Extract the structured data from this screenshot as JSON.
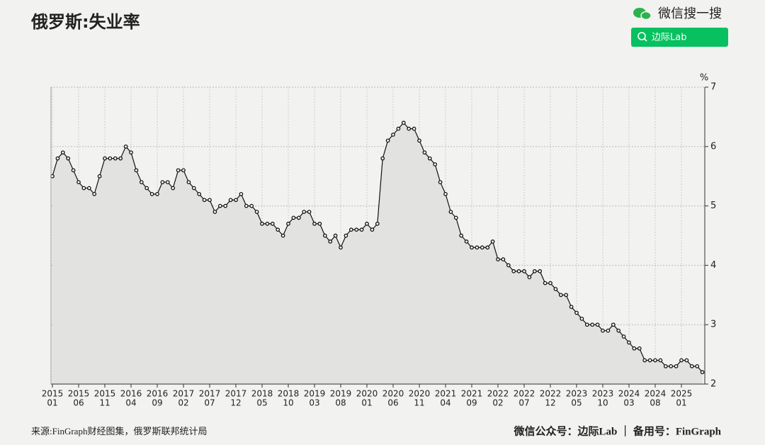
{
  "chart_data": {
    "type": "line",
    "title": "俄罗斯:失业率",
    "unit": "%",
    "search_label": "微信搜一搜",
    "search_button": "边际Lab",
    "source": "来源:FinGraph财经图集，俄罗斯联邦统计局",
    "footer_right": "微信公众号：边际Lab ｜ 备用号：FinGraph",
    "categories": [
      {
        "year": "2015",
        "month": "01"
      },
      null,
      null,
      null,
      null,
      {
        "year": "2015",
        "month": "06"
      },
      null,
      null,
      null,
      null,
      {
        "year": "2015",
        "month": "11"
      },
      null,
      null,
      null,
      null,
      {
        "year": "2016",
        "month": "04"
      },
      null,
      null,
      null,
      null,
      {
        "year": "2016",
        "month": "09"
      },
      null,
      null,
      null,
      null,
      {
        "year": "2017",
        "month": "02"
      },
      null,
      null,
      null,
      null,
      {
        "year": "2017",
        "month": "07"
      },
      null,
      null,
      null,
      null,
      {
        "year": "2017",
        "month": "12"
      },
      null,
      null,
      null,
      null,
      {
        "year": "2018",
        "month": "05"
      },
      null,
      null,
      null,
      null,
      {
        "year": "2018",
        "month": "10"
      },
      null,
      null,
      null,
      null,
      {
        "year": "2019",
        "month": "03"
      },
      null,
      null,
      null,
      null,
      {
        "year": "2019",
        "month": "08"
      },
      null,
      null,
      null,
      null,
      {
        "year": "2020",
        "month": "01"
      },
      null,
      null,
      null,
      null,
      {
        "year": "2020",
        "month": "06"
      },
      null,
      null,
      null,
      null,
      {
        "year": "2020",
        "month": "11"
      },
      null,
      null,
      null,
      null,
      {
        "year": "2021",
        "month": "04"
      },
      null,
      null,
      null,
      null,
      {
        "year": "2021",
        "month": "09"
      },
      null,
      null,
      null,
      null,
      {
        "year": "2022",
        "month": "02"
      },
      null,
      null,
      null,
      null,
      {
        "year": "2022",
        "month": "07"
      },
      null,
      null,
      null,
      null,
      {
        "year": "2022",
        "month": "12"
      },
      null,
      null,
      null,
      null,
      {
        "year": "2023",
        "month": "05"
      },
      null,
      null,
      null,
      null,
      {
        "year": "2023",
        "month": "10"
      },
      null,
      null,
      null,
      null,
      {
        "year": "2024",
        "month": "03"
      },
      null,
      null,
      null,
      null,
      {
        "year": "2024",
        "month": "08"
      },
      null,
      null,
      null,
      null,
      {
        "year": "2025",
        "month": "01"
      },
      null,
      null,
      null,
      null
    ],
    "values": [
      5.5,
      5.8,
      5.9,
      5.8,
      5.6,
      5.4,
      5.3,
      5.3,
      5.2,
      5.5,
      5.8,
      5.8,
      5.8,
      5.8,
      6.0,
      5.9,
      5.6,
      5.4,
      5.3,
      5.2,
      5.2,
      5.4,
      5.4,
      5.3,
      5.6,
      5.6,
      5.4,
      5.3,
      5.2,
      5.1,
      5.1,
      4.9,
      5.0,
      5.0,
      5.1,
      5.1,
      5.2,
      5.0,
      5.0,
      4.9,
      4.7,
      4.7,
      4.7,
      4.6,
      4.5,
      4.7,
      4.8,
      4.8,
      4.9,
      4.9,
      4.7,
      4.7,
      4.5,
      4.4,
      4.5,
      4.3,
      4.5,
      4.6,
      4.6,
      4.6,
      4.7,
      4.6,
      4.7,
      5.8,
      6.1,
      6.2,
      6.3,
      6.4,
      6.3,
      6.3,
      6.1,
      5.9,
      5.8,
      5.7,
      5.4,
      5.2,
      4.9,
      4.8,
      4.5,
      4.4,
      4.3,
      4.3,
      4.3,
      4.3,
      4.4,
      4.1,
      4.1,
      4.0,
      3.9,
      3.9,
      3.9,
      3.8,
      3.9,
      3.9,
      3.7,
      3.7,
      3.6,
      3.5,
      3.5,
      3.3,
      3.2,
      3.1,
      3.0,
      3.0,
      3.0,
      2.9,
      2.9,
      3.0,
      2.9,
      2.8,
      2.7,
      2.6,
      2.6,
      2.4,
      2.4,
      2.4,
      2.4,
      2.3,
      2.3,
      2.3,
      2.4,
      2.4,
      2.3,
      2.3,
      2.2
    ],
    "color": "#111111",
    "fill": "#e2e2e0",
    "ylim": [
      2,
      7
    ],
    "yticks": [
      2,
      3,
      4,
      5,
      6,
      7
    ],
    "grid": true
  }
}
